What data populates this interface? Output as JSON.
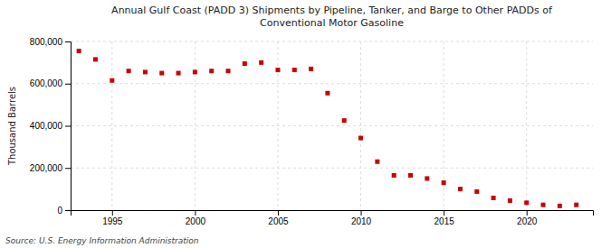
{
  "chart_data": {
    "type": "scatter",
    "title": "Annual Gulf Coast (PADD 3) Shipments by Pipeline, Tanker, and Barge to Other PADDs of\nConventional Motor Gasoline",
    "ylabel": "Thousand Barrels",
    "annotations": [
      "Source: U.S. Energy Information Administration"
    ],
    "x": [
      1993,
      1994,
      1995,
      1996,
      1997,
      1998,
      1999,
      2000,
      2001,
      2002,
      2003,
      2004,
      2005,
      2006,
      2007,
      2008,
      2009,
      2010,
      2011,
      2012,
      2013,
      2014,
      2015,
      2016,
      2017,
      2018,
      2019,
      2020,
      2021,
      2022,
      2023
    ],
    "values": [
      755000,
      715000,
      615000,
      660000,
      655000,
      650000,
      650000,
      655000,
      660000,
      660000,
      695000,
      700000,
      665000,
      665000,
      670000,
      555000,
      425000,
      342000,
      230000,
      165000,
      165000,
      150000,
      130000,
      100000,
      88000,
      58000,
      45000,
      35000,
      25000,
      20000,
      25000
    ],
    "color": "#cc0000",
    "marker": "square",
    "grid": true,
    "xlim": [
      1992.5,
      2024
    ],
    "xticks": [
      1995,
      2000,
      2005,
      2010,
      2015,
      2020
    ],
    "ylim": [
      0,
      800000
    ],
    "yticks": [
      0,
      {
        "value": 200000,
        "label": "200,000"
      },
      {
        "value": 400000,
        "label": "400,000"
      },
      {
        "value": 600000,
        "label": "600,000"
      },
      {
        "value": 800000,
        "label": "800,000"
      }
    ]
  }
}
